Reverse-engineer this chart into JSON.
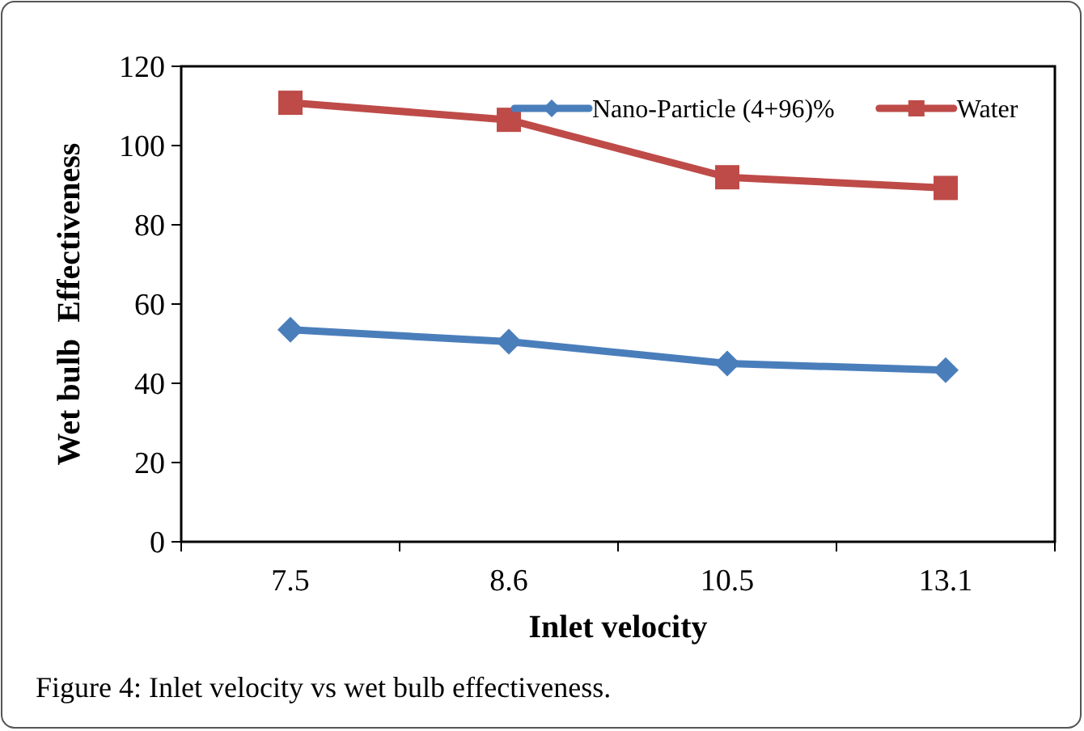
{
  "chart_data": {
    "type": "line",
    "xlabel": "Inlet velocity",
    "ylabel": "Wet bulb  Effectiveness",
    "categories": [
      "7.5",
      "8.6",
      "10.5",
      "13.1"
    ],
    "series": [
      {
        "name": "Nano-Particle (4+96)%",
        "color": "#4a7ebb",
        "marker": "diamond",
        "values": [
          53.5,
          50.5,
          45,
          43.3
        ]
      },
      {
        "name": "Water",
        "color": "#be4b48",
        "marker": "square",
        "values": [
          110.8,
          106.5,
          92,
          89.3
        ]
      }
    ],
    "ylim": [
      0,
      120
    ],
    "yticks": [
      0,
      20,
      40,
      60,
      80,
      100,
      120
    ],
    "grid": false,
    "legend": "top right",
    "annotations": [
      "Figure 4: Inlet velocity vs wet bulb effectiveness."
    ]
  }
}
